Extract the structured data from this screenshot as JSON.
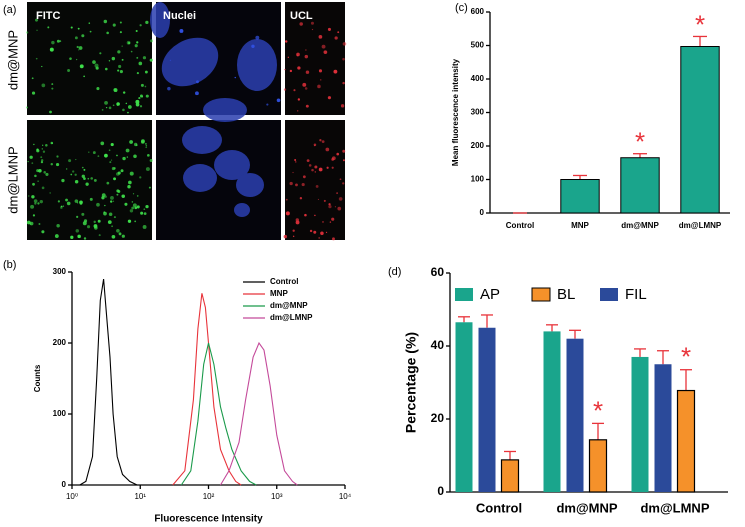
{
  "panel_a": {
    "label": "(a)",
    "columns": [
      "FITC",
      "Nuclei",
      "UCL"
    ],
    "rows": [
      "dm@MNP",
      "dm@LMNP"
    ]
  },
  "chart_data": [
    {
      "type": "line",
      "panel_label": "(b)",
      "x_label": "Fluorescence Intensity",
      "y_label": "Counts",
      "log_x": true,
      "xlim": [
        1,
        10000
      ],
      "xticks": [
        {
          "value": 1,
          "label": "10⁰"
        },
        {
          "value": 10,
          "label": "10¹"
        },
        {
          "value": 100,
          "label": "10²"
        },
        {
          "value": 1000,
          "label": "10³"
        },
        {
          "value": 10000,
          "label": "10⁴"
        }
      ],
      "ylim": [
        0,
        300
      ],
      "yticks": [
        0,
        100,
        200,
        300
      ],
      "legend": "upper right",
      "series": [
        {
          "name": "Control",
          "color": "#000000",
          "x": [
            1.3,
            1.6,
            2,
            2.3,
            2.6,
            2.9,
            3.2,
            3.6,
            4,
            4.6,
            5.5,
            7,
            9
          ],
          "values": [
            0,
            5,
            40,
            150,
            260,
            290,
            240,
            180,
            100,
            40,
            15,
            5,
            0
          ]
        },
        {
          "name": "MNP",
          "color": "#e8333a",
          "x": [
            30,
            45,
            60,
            70,
            80,
            90,
            100,
            120,
            150,
            200,
            250,
            300
          ],
          "values": [
            0,
            20,
            120,
            220,
            270,
            250,
            200,
            110,
            50,
            20,
            5,
            0
          ]
        },
        {
          "name": "dm@MNP",
          "color": "#1a9a4a",
          "x": [
            40,
            55,
            70,
            85,
            100,
            120,
            150,
            180,
            220,
            300,
            400,
            500
          ],
          "values": [
            0,
            20,
            90,
            170,
            200,
            170,
            110,
            80,
            50,
            20,
            5,
            0
          ]
        },
        {
          "name": "dm@LMNP",
          "color": "#c44a9a",
          "x": [
            150,
            200,
            280,
            350,
            450,
            550,
            650,
            800,
            1000,
            1300,
            1700,
            2000
          ],
          "values": [
            0,
            20,
            60,
            120,
            180,
            200,
            190,
            140,
            70,
            20,
            5,
            0
          ]
        }
      ]
    },
    {
      "type": "bar",
      "panel_label": "(c)",
      "y_label": "Mean fluorescence intensity",
      "categories": [
        "Control",
        "MNP",
        "dm@MNP",
        "dm@LMNP"
      ],
      "values": [
        0,
        100,
        165,
        497
      ],
      "errors": [
        0,
        12,
        12,
        30
      ],
      "markers": [
        null,
        null,
        "*",
        "*"
      ],
      "color": "#1aa58c",
      "error_color": "#e8333a",
      "ylim": [
        0,
        600
      ],
      "yticks": [
        0,
        100,
        200,
        300,
        400,
        500,
        600
      ]
    },
    {
      "type": "grouped_bar",
      "panel_label": "(d)",
      "y_label": "Percentage (%)",
      "categories": [
        "Control",
        "dm@MNP",
        "dm@LMNP"
      ],
      "ylim": [
        0,
        60
      ],
      "yticks": [
        0,
        20,
        40,
        60
      ],
      "error_color": "#e8333a",
      "legend": "top",
      "series": [
        {
          "name": "AP",
          "color": "#1aa58c",
          "values": [
            46.5,
            44,
            37
          ],
          "errors": [
            1.5,
            1.8,
            2.2
          ]
        },
        {
          "name": "BL",
          "color": "#f5912a",
          "values": [
            8.8,
            14.3,
            27.8
          ],
          "errors": [
            2.3,
            4.5,
            5.7
          ],
          "markers": [
            null,
            "*",
            "*"
          ]
        },
        {
          "name": "FIL",
          "color": "#2b4a9a",
          "values": [
            45,
            42,
            35
          ],
          "errors": [
            3.5,
            2.3,
            3.7
          ]
        }
      ]
    }
  ]
}
